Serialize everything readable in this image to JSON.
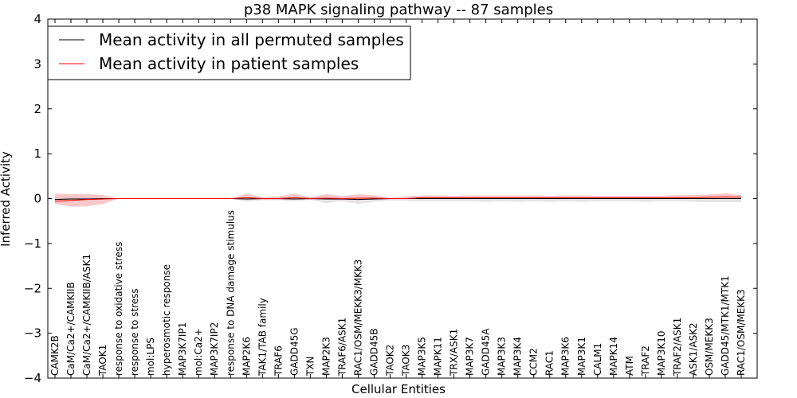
{
  "chart_data": {
    "type": "line",
    "title": "p38 MAPK signaling pathway -- 87 samples",
    "xlabel": "Cellular Entities",
    "ylabel": "Inferred Activity",
    "ylim": [
      -4,
      4
    ],
    "yticks": [
      -4,
      -3,
      -2,
      -1,
      0,
      1,
      2,
      3,
      4
    ],
    "ytick_labels": [
      "−4",
      "−3",
      "−2",
      "−1",
      "0",
      "1",
      "2",
      "3",
      "4"
    ],
    "grid": false,
    "legend_position": "top-left",
    "categories": [
      "CAMK2B",
      "CaM/Ca2+/CAMKIIB",
      "CaM/Ca2+/CAMKIIB/ASK1",
      "TAOK1",
      "response to oxidative stress",
      "response to stress",
      "mol:LPS",
      "hyperosmotic response",
      "MAP3K7IP1",
      "mol:Ca2+",
      "MAP3K7IP2",
      "response to DNA damage stimulus",
      "MAP2K6",
      "TAK1/TAB family",
      "TRAF6",
      "GADD45G",
      "TXN",
      "MAP2K3",
      "TRAF6/ASK1",
      "RAC1/OSM/MEKK3/MKK3",
      "GADD45B",
      "TAOK2",
      "TAOK3",
      "MAP3K5",
      "MAPK11",
      "TRX/ASK1",
      "MAP3K7",
      "GADD45A",
      "MAP3K3",
      "MAP3K4",
      "CCM2",
      "RAC1",
      "MAP3K6",
      "MAP3K1",
      "CALM1",
      "MAPK14",
      "ATM",
      "TRAF2",
      "MAP3K10",
      "TRAF2/ASK1",
      "ASK1/ASK2",
      "OSM/MEKK3",
      "GADD45/MTK1/MTK1",
      "RAC1/OSM/MEKK3"
    ],
    "series": [
      {
        "name": "Mean activity in all permuted samples",
        "color": "#000000",
        "band_color": "#d9d9d9",
        "values": [
          -0.02,
          -0.01,
          -0.01,
          0.0,
          0.0,
          0.0,
          0.0,
          0.0,
          0.0,
          0.0,
          0.0,
          0.0,
          -0.01,
          0.0,
          0.0,
          -0.01,
          0.0,
          -0.01,
          -0.01,
          -0.02,
          -0.01,
          0.0,
          0.0,
          0.0,
          0.0,
          0.0,
          0.0,
          0.0,
          0.0,
          0.0,
          0.0,
          0.0,
          0.0,
          0.0,
          0.0,
          0.0,
          0.0,
          0.0,
          0.0,
          0.0,
          0.0,
          0.0,
          0.0,
          0.0
        ],
        "lower": [
          -0.06,
          -0.05,
          -0.05,
          -0.02,
          0.0,
          0.0,
          0.0,
          0.0,
          0.0,
          0.0,
          0.0,
          0.0,
          -0.07,
          -0.03,
          -0.03,
          -0.06,
          -0.03,
          -0.1,
          -0.06,
          -0.12,
          -0.07,
          -0.04,
          -0.05,
          -0.06,
          -0.06,
          -0.06,
          -0.06,
          -0.07,
          -0.06,
          -0.07,
          -0.06,
          -0.07,
          -0.06,
          -0.07,
          -0.06,
          -0.06,
          -0.06,
          -0.07,
          -0.06,
          -0.06,
          -0.07,
          -0.08,
          -0.08,
          -0.08
        ],
        "upper": [
          0.03,
          0.03,
          0.03,
          0.02,
          0.0,
          0.0,
          0.0,
          0.0,
          0.0,
          0.0,
          0.0,
          0.0,
          0.03,
          0.02,
          0.02,
          0.03,
          0.02,
          0.03,
          0.03,
          0.03,
          0.02,
          0.01,
          0.01,
          0.01,
          0.01,
          0.01,
          0.01,
          0.01,
          0.01,
          0.01,
          0.01,
          0.01,
          0.01,
          0.01,
          0.01,
          0.01,
          0.01,
          0.01,
          0.01,
          0.01,
          0.01,
          0.01,
          0.01,
          0.01
        ]
      },
      {
        "name": "Mean activity in patient samples",
        "color": "#ff0000",
        "band_color": "#f4a3a3",
        "values": [
          -0.06,
          -0.04,
          -0.02,
          -0.01,
          0.0,
          0.0,
          0.0,
          0.0,
          0.0,
          0.0,
          0.0,
          0.0,
          0.02,
          0.0,
          0.0,
          0.02,
          0.0,
          0.01,
          0.0,
          0.01,
          0.01,
          0.0,
          0.0,
          0.02,
          0.02,
          0.02,
          0.02,
          0.02,
          0.02,
          0.02,
          0.02,
          0.02,
          0.02,
          0.02,
          0.02,
          0.02,
          0.02,
          0.02,
          0.02,
          0.02,
          0.02,
          0.03,
          0.04,
          0.03
        ],
        "lower": [
          -0.12,
          -0.18,
          -0.17,
          -0.12,
          0.0,
          0.0,
          0.0,
          0.0,
          0.0,
          0.0,
          0.0,
          0.0,
          -0.02,
          -0.03,
          -0.03,
          -0.02,
          -0.02,
          -0.02,
          -0.03,
          -0.03,
          -0.02,
          -0.02,
          -0.01,
          -0.01,
          -0.01,
          -0.01,
          -0.01,
          -0.01,
          -0.01,
          -0.01,
          -0.01,
          -0.01,
          -0.01,
          -0.01,
          -0.01,
          -0.01,
          -0.01,
          -0.01,
          -0.01,
          -0.01,
          -0.01,
          0.0,
          0.0,
          0.0
        ],
        "upper": [
          0.11,
          0.1,
          0.1,
          0.08,
          0.0,
          0.0,
          0.0,
          0.0,
          0.0,
          0.0,
          0.0,
          0.0,
          0.11,
          0.03,
          0.05,
          0.11,
          0.03,
          0.1,
          0.05,
          0.1,
          0.07,
          0.02,
          0.05,
          0.07,
          0.07,
          0.06,
          0.07,
          0.07,
          0.07,
          0.07,
          0.07,
          0.06,
          0.07,
          0.07,
          0.06,
          0.06,
          0.06,
          0.06,
          0.06,
          0.08,
          0.08,
          0.09,
          0.12,
          0.08
        ]
      }
    ]
  }
}
